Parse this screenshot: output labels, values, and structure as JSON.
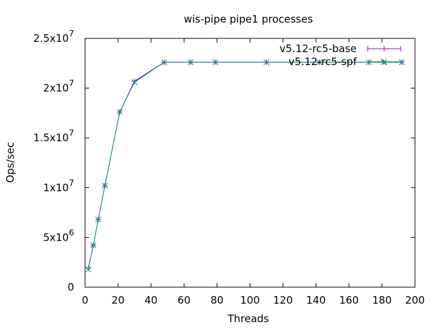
{
  "chart_data": {
    "type": "line",
    "title": "wis-pipe pipe1 processes",
    "xlabel": "Threads",
    "ylabel": "Ops/sec",
    "xlim": [
      0,
      200
    ],
    "ylim": [
      0,
      25000000
    ],
    "x_ticks": [
      {
        "value": 0,
        "label": "0"
      },
      {
        "value": 20,
        "label": "20"
      },
      {
        "value": 40,
        "label": "40"
      },
      {
        "value": 60,
        "label": "60"
      },
      {
        "value": 80,
        "label": "80"
      },
      {
        "value": 100,
        "label": "100"
      },
      {
        "value": 120,
        "label": "120"
      },
      {
        "value": 140,
        "label": "140"
      },
      {
        "value": 160,
        "label": "160"
      },
      {
        "value": 180,
        "label": "180"
      },
      {
        "value": 200,
        "label": "200"
      }
    ],
    "y_ticks": [
      {
        "value": 0,
        "mant": "0",
        "exp": ""
      },
      {
        "value": 5000000,
        "mant": "5x10",
        "exp": "6"
      },
      {
        "value": 10000000,
        "mant": "1x10",
        "exp": "7"
      },
      {
        "value": 15000000,
        "mant": "1.5x10",
        "exp": "7"
      },
      {
        "value": 20000000,
        "mant": "2x10",
        "exp": "7"
      },
      {
        "value": 25000000,
        "mant": "2.5x10",
        "exp": "7"
      }
    ],
    "grid": false,
    "legend_position": "top-right",
    "x": [
      2,
      5,
      8,
      12,
      21,
      30,
      48,
      64,
      79,
      110,
      142,
      172,
      181,
      192
    ],
    "series": [
      {
        "name": "v5.12-rc5-base",
        "color": "#9400d3",
        "marker": "plus",
        "values": [
          1900000,
          4200000,
          6800000,
          10200000,
          17600000,
          20700000,
          22600000,
          22600000,
          22600000,
          22600000,
          22600000,
          22600000,
          22600000,
          22600000
        ]
      },
      {
        "name": "v5.12-rc5-spf",
        "color": "#009e73",
        "marker": "x",
        "values": [
          1800000,
          4200000,
          6800000,
          10200000,
          17600000,
          20600000,
          22600000,
          22600000,
          22600000,
          22600000,
          22600000,
          22600000,
          22600000,
          22600000
        ]
      }
    ]
  }
}
